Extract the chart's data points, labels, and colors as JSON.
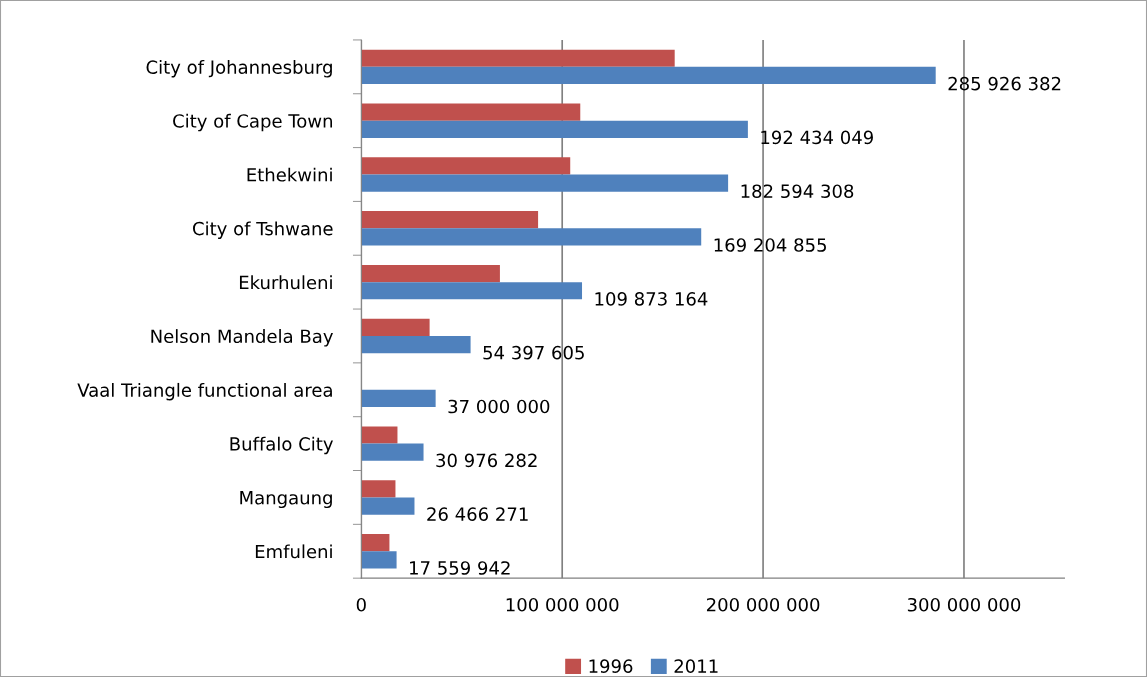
{
  "chart_data": {
    "type": "bar",
    "orientation": "horizontal",
    "categories": [
      "City of Johannesburg",
      "City of Cape Town",
      "Ethekwini",
      "City of Tshwane",
      "Ekurhuleni",
      "Nelson Mandela Bay",
      "Vaal Triangle functional area",
      "Buffalo City",
      "Mangaung",
      "Emfuleni"
    ],
    "series": [
      {
        "name": "1996",
        "color": "#c0504d",
        "values": [
          156000000,
          109000000,
          104000000,
          88000000,
          69000000,
          34000000,
          null,
          18000000,
          17000000,
          14000000
        ]
      },
      {
        "name": "2011",
        "color": "#4f81bd",
        "values": [
          285926382,
          192434049,
          182594308,
          169204855,
          109873164,
          54397605,
          37000000,
          30976282,
          26466271,
          17559942
        ],
        "value_labels": [
          "285 926 382",
          "192 434 049",
          "182 594 308",
          "169 204 855",
          "109 873 164",
          "54 397 605",
          "37 000 000",
          "30 976 282",
          "26 466 271",
          "17 559 942"
        ]
      }
    ],
    "xlim": [
      0,
      350000000
    ],
    "xticks": [
      0,
      {
        "value": 100000000,
        "label": "100 000 000"
      },
      {
        "value": 200000000,
        "label": "200 000 000"
      },
      {
        "value": 300000000,
        "label": "300 000 000"
      }
    ],
    "grid": "x",
    "legend": "bottom"
  }
}
